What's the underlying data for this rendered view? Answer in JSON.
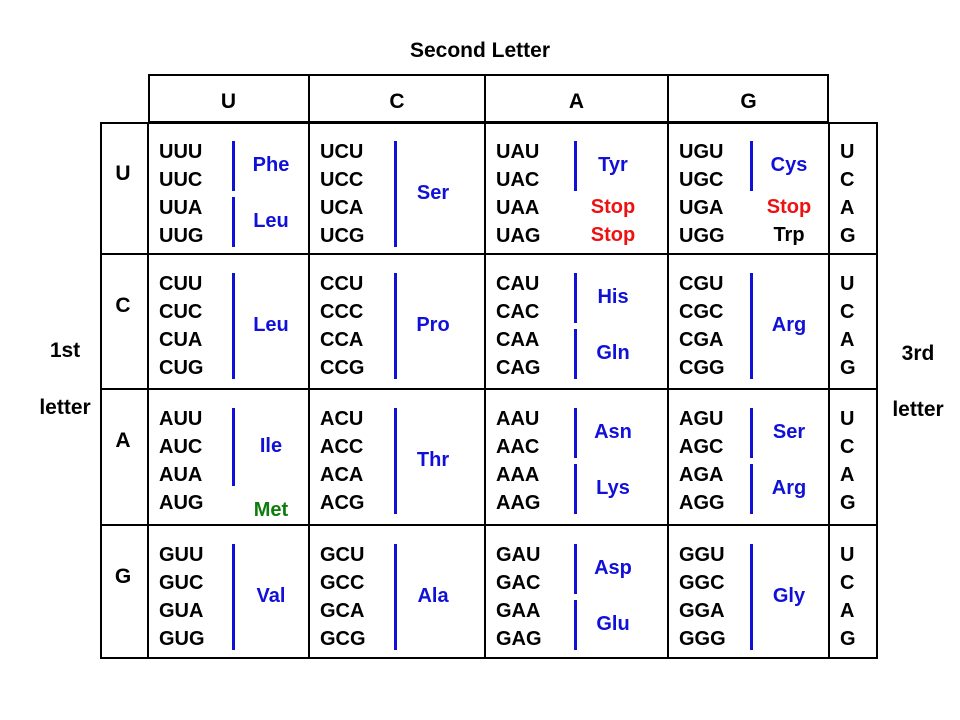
{
  "title": "Second Letter",
  "first_letter_label": [
    "1st",
    "letter"
  ],
  "third_letter_label": [
    "3rd",
    "letter"
  ],
  "second_letters": [
    "U",
    "C",
    "A",
    "G"
  ],
  "first_letters": [
    "U",
    "C",
    "A",
    "G"
  ],
  "third_letters": [
    "U",
    "C",
    "A",
    "G"
  ],
  "colors": {
    "amino_acid": "#1010d8",
    "stop": "#ee1111",
    "start": "#0d7d0d",
    "text": "#000000"
  },
  "cells": [
    [
      {
        "codons": [
          "UUU",
          "UUC",
          "UUA",
          "UUG"
        ],
        "groups": [
          {
            "label": "Phe",
            "color": "blue",
            "rows": [
              0,
              1
            ]
          },
          {
            "label": "Leu",
            "color": "blue",
            "rows": [
              2,
              3
            ]
          }
        ]
      },
      {
        "codons": [
          "UCU",
          "UCC",
          "UCA",
          "UCG"
        ],
        "groups": [
          {
            "label": "Ser",
            "color": "blue",
            "rows": [
              0,
              3
            ]
          }
        ]
      },
      {
        "codons": [
          "UAU",
          "UAC",
          "UAA",
          "UAG"
        ],
        "groups": [
          {
            "label": "Tyr",
            "color": "blue",
            "rows": [
              0,
              1
            ]
          },
          {
            "label": "Stop",
            "color": "red",
            "rows": [
              2,
              2
            ],
            "nobar": true
          },
          {
            "label": "Stop",
            "color": "red",
            "rows": [
              3,
              3
            ],
            "nobar": true
          }
        ]
      },
      {
        "codons": [
          "UGU",
          "UGC",
          "UGA",
          "UGG"
        ],
        "groups": [
          {
            "label": "Cys",
            "color": "blue",
            "rows": [
              0,
              1
            ]
          },
          {
            "label": "Stop",
            "color": "red",
            "rows": [
              2,
              2
            ],
            "nobar": true
          },
          {
            "label": "Trp",
            "color": "black",
            "rows": [
              3,
              3
            ],
            "nobar": true
          }
        ]
      }
    ],
    [
      {
        "codons": [
          "CUU",
          "CUC",
          "CUA",
          "CUG"
        ],
        "groups": [
          {
            "label": "Leu",
            "color": "blue",
            "rows": [
              0,
              3
            ]
          }
        ]
      },
      {
        "codons": [
          "CCU",
          "CCC",
          "CCA",
          "CCG"
        ],
        "groups": [
          {
            "label": "Pro",
            "color": "blue",
            "rows": [
              0,
              3
            ]
          }
        ]
      },
      {
        "codons": [
          "CAU",
          "CAC",
          "CAA",
          "CAG"
        ],
        "groups": [
          {
            "label": "His",
            "color": "blue",
            "rows": [
              0,
              1
            ]
          },
          {
            "label": "Gln",
            "color": "blue",
            "rows": [
              2,
              3
            ]
          }
        ]
      },
      {
        "codons": [
          "CGU",
          "CGC",
          "CGA",
          "CGG"
        ],
        "groups": [
          {
            "label": "Arg",
            "color": "blue",
            "rows": [
              0,
              3
            ]
          }
        ]
      }
    ],
    [
      {
        "codons": [
          "AUU",
          "AUC",
          "AUA",
          "AUG"
        ],
        "groups": [
          {
            "label": "Ile",
            "color": "blue",
            "rows": [
              0,
              2
            ]
          },
          {
            "label": "Met",
            "color": "green",
            "rows": [
              3,
              3
            ],
            "nobar": true,
            "offset": 8
          }
        ]
      },
      {
        "codons": [
          "ACU",
          "ACC",
          "ACA",
          "ACG"
        ],
        "groups": [
          {
            "label": "Thr",
            "color": "blue",
            "rows": [
              0,
              3
            ]
          }
        ]
      },
      {
        "codons": [
          "AAU",
          "AAC",
          "AAA",
          "AAG"
        ],
        "groups": [
          {
            "label": "Asn",
            "color": "blue",
            "rows": [
              0,
              1
            ]
          },
          {
            "label": "Lys",
            "color": "blue",
            "rows": [
              2,
              3
            ]
          }
        ]
      },
      {
        "codons": [
          "AGU",
          "AGC",
          "AGA",
          "AGG"
        ],
        "groups": [
          {
            "label": "Ser",
            "color": "blue",
            "rows": [
              0,
              1
            ]
          },
          {
            "label": "Arg",
            "color": "blue",
            "rows": [
              2,
              3
            ]
          }
        ]
      }
    ],
    [
      {
        "codons": [
          "GUU",
          "GUC",
          "GUA",
          "GUG"
        ],
        "groups": [
          {
            "label": "Val",
            "color": "blue",
            "rows": [
              0,
              3
            ]
          }
        ]
      },
      {
        "codons": [
          "GCU",
          "GCC",
          "GCA",
          "GCG"
        ],
        "groups": [
          {
            "label": "Ala",
            "color": "blue",
            "rows": [
              0,
              3
            ]
          }
        ]
      },
      {
        "codons": [
          "GAU",
          "GAC",
          "GAA",
          "GAG"
        ],
        "groups": [
          {
            "label": "Asp",
            "color": "blue",
            "rows": [
              0,
              1
            ]
          },
          {
            "label": "Glu",
            "color": "blue",
            "rows": [
              2,
              3
            ]
          }
        ]
      },
      {
        "codons": [
          "GGU",
          "GGC",
          "GGA",
          "GGG"
        ],
        "groups": [
          {
            "label": "Gly",
            "color": "blue",
            "rows": [
              0,
              3
            ]
          }
        ]
      }
    ]
  ]
}
